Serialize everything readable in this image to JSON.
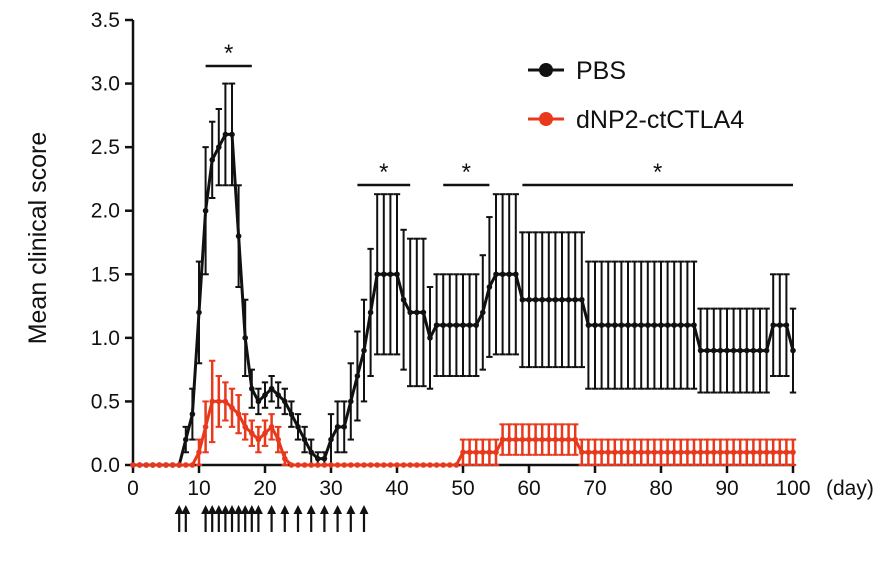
{
  "chart_data": {
    "type": "line",
    "ylabel": "Mean clinical score",
    "xunit": "(day)",
    "xlim": [
      0,
      100
    ],
    "ylim": [
      0,
      3.5
    ],
    "x_ticks": [
      0,
      10,
      20,
      30,
      40,
      50,
      60,
      70,
      80,
      90,
      100
    ],
    "y_ticks": [
      "0.0",
      "0.5",
      "1.0",
      "1.5",
      "2.0",
      "2.5",
      "3.0",
      "3.5"
    ],
    "legend_position": "top-right",
    "colors": {
      "pbs": "#111111",
      "dnp2": "#e8391d"
    },
    "series": [
      {
        "name": "PBS",
        "color": "#111111",
        "x": [
          0,
          1,
          2,
          3,
          4,
          5,
          6,
          7,
          8,
          9,
          10,
          11,
          12,
          13,
          14,
          15,
          16,
          17,
          18,
          19,
          20,
          21,
          22,
          23,
          24,
          25,
          26,
          27,
          28,
          29,
          30,
          31,
          32,
          33,
          34,
          35,
          36,
          37,
          38,
          39,
          40,
          41,
          42,
          43,
          44,
          45,
          46,
          47,
          48,
          49,
          50,
          51,
          52,
          53,
          54,
          55,
          56,
          57,
          58,
          59,
          60,
          61,
          62,
          63,
          64,
          65,
          66,
          67,
          68,
          69,
          70,
          71,
          72,
          73,
          74,
          75,
          76,
          77,
          78,
          79,
          80,
          81,
          82,
          83,
          84,
          85,
          86,
          87,
          88,
          89,
          90,
          91,
          92,
          93,
          94,
          95,
          96,
          97,
          98,
          99,
          100
        ],
        "y": [
          0,
          0,
          0,
          0,
          0,
          0,
          0,
          0,
          0.2,
          0.4,
          1.2,
          2.0,
          2.4,
          2.5,
          2.6,
          2.6,
          1.8,
          1.0,
          0.6,
          0.5,
          0.55,
          0.6,
          0.55,
          0.5,
          0.4,
          0.3,
          0.2,
          0.1,
          0.05,
          0.05,
          0.2,
          0.3,
          0.3,
          0.5,
          0.7,
          0.9,
          1.2,
          1.5,
          1.5,
          1.5,
          1.5,
          1.3,
          1.2,
          1.2,
          1.2,
          1.0,
          1.1,
          1.1,
          1.1,
          1.1,
          1.1,
          1.1,
          1.1,
          1.2,
          1.4,
          1.5,
          1.5,
          1.5,
          1.5,
          1.3,
          1.3,
          1.3,
          1.3,
          1.3,
          1.3,
          1.3,
          1.3,
          1.3,
          1.3,
          1.1,
          1.1,
          1.1,
          1.1,
          1.1,
          1.1,
          1.1,
          1.1,
          1.1,
          1.1,
          1.1,
          1.1,
          1.1,
          1.1,
          1.1,
          1.1,
          1.1,
          0.9,
          0.9,
          0.9,
          0.9,
          0.9,
          0.9,
          0.9,
          0.9,
          0.9,
          0.9,
          0.9,
          1.1,
          1.1,
          1.1,
          0.9
        ],
        "err": [
          0,
          0,
          0,
          0,
          0,
          0,
          0,
          0,
          0.1,
          0.2,
          0.4,
          0.5,
          0.3,
          0.3,
          0.4,
          0.4,
          0.4,
          0.3,
          0.15,
          0.1,
          0.1,
          0.1,
          0.1,
          0.1,
          0.1,
          0.1,
          0.1,
          0.1,
          0.05,
          0.05,
          0.2,
          0.2,
          0.2,
          0.3,
          0.35,
          0.4,
          0.5,
          0.63,
          0.63,
          0.63,
          0.63,
          0.55,
          0.58,
          0.58,
          0.58,
          0.4,
          0.4,
          0.4,
          0.4,
          0.4,
          0.4,
          0.4,
          0.4,
          0.45,
          0.55,
          0.63,
          0.63,
          0.63,
          0.63,
          0.53,
          0.53,
          0.53,
          0.53,
          0.53,
          0.53,
          0.53,
          0.53,
          0.53,
          0.53,
          0.5,
          0.5,
          0.5,
          0.5,
          0.5,
          0.5,
          0.5,
          0.5,
          0.5,
          0.5,
          0.5,
          0.5,
          0.5,
          0.5,
          0.5,
          0.5,
          0.5,
          0.33,
          0.33,
          0.33,
          0.33,
          0.33,
          0.33,
          0.33,
          0.33,
          0.33,
          0.33,
          0.33,
          0.4,
          0.4,
          0.4,
          0.33
        ]
      },
      {
        "name": "dNP2-ctCTLA4",
        "color": "#e8391d",
        "x": [
          0,
          1,
          2,
          3,
          4,
          5,
          6,
          7,
          8,
          9,
          10,
          11,
          12,
          13,
          14,
          15,
          16,
          17,
          18,
          19,
          20,
          21,
          22,
          23,
          24,
          25,
          26,
          27,
          28,
          29,
          30,
          31,
          32,
          33,
          34,
          35,
          36,
          37,
          38,
          39,
          40,
          41,
          42,
          43,
          44,
          45,
          46,
          47,
          48,
          49,
          50,
          51,
          52,
          53,
          54,
          55,
          56,
          57,
          58,
          59,
          60,
          61,
          62,
          63,
          64,
          65,
          66,
          67,
          68,
          69,
          70,
          71,
          72,
          73,
          74,
          75,
          76,
          77,
          78,
          79,
          80,
          81,
          82,
          83,
          84,
          85,
          86,
          87,
          88,
          89,
          90,
          91,
          92,
          93,
          94,
          95,
          96,
          97,
          98,
          99,
          100
        ],
        "y": [
          0,
          0,
          0,
          0,
          0,
          0,
          0,
          0,
          0,
          0,
          0.1,
          0.3,
          0.5,
          0.5,
          0.5,
          0.45,
          0.4,
          0.3,
          0.25,
          0.2,
          0.25,
          0.3,
          0.2,
          0.05,
          0,
          0,
          0,
          0,
          0,
          0,
          0,
          0,
          0,
          0,
          0,
          0,
          0,
          0,
          0,
          0,
          0,
          0,
          0,
          0,
          0,
          0,
          0,
          0,
          0,
          0,
          0.1,
          0.1,
          0.1,
          0.1,
          0.1,
          0.1,
          0.2,
          0.2,
          0.2,
          0.2,
          0.2,
          0.2,
          0.2,
          0.2,
          0.2,
          0.2,
          0.2,
          0.2,
          0.1,
          0.1,
          0.1,
          0.1,
          0.1,
          0.1,
          0.1,
          0.1,
          0.1,
          0.1,
          0.1,
          0.1,
          0.1,
          0.1,
          0.1,
          0.1,
          0.1,
          0.1,
          0.1,
          0.1,
          0.1,
          0.1,
          0.1,
          0.1,
          0.1,
          0.1,
          0.1,
          0.1,
          0.1,
          0.1,
          0.1,
          0.1,
          0.1
        ],
        "err": [
          0,
          0,
          0,
          0,
          0,
          0,
          0,
          0,
          0,
          0,
          0.1,
          0.2,
          0.32,
          0.2,
          0.15,
          0.15,
          0.15,
          0.1,
          0.1,
          0.1,
          0.1,
          0.1,
          0.1,
          0.05,
          0,
          0,
          0,
          0,
          0,
          0,
          0,
          0,
          0,
          0,
          0,
          0,
          0,
          0,
          0,
          0,
          0,
          0,
          0,
          0,
          0,
          0,
          0,
          0,
          0,
          0,
          0.1,
          0.1,
          0.1,
          0.1,
          0.1,
          0.1,
          0.12,
          0.12,
          0.12,
          0.12,
          0.12,
          0.12,
          0.12,
          0.12,
          0.12,
          0.12,
          0.12,
          0.12,
          0.1,
          0.1,
          0.1,
          0.1,
          0.1,
          0.1,
          0.1,
          0.1,
          0.1,
          0.1,
          0.1,
          0.1,
          0.1,
          0.1,
          0.1,
          0.1,
          0.1,
          0.1,
          0.1,
          0.1,
          0.1,
          0.1,
          0.1,
          0.1,
          0.1,
          0.1,
          0.1,
          0.1,
          0.1,
          0.1,
          0.1,
          0.1,
          0.1
        ]
      }
    ],
    "significance": [
      {
        "from": 11,
        "to": 18,
        "label": "*"
      },
      {
        "from": 34,
        "to": 42,
        "label": "*"
      },
      {
        "from": 47,
        "to": 54,
        "label": "*"
      },
      {
        "from": 59,
        "to": 100,
        "label": "*"
      }
    ],
    "injection_days": [
      7,
      8,
      11,
      12,
      13,
      14,
      15,
      16,
      17,
      18,
      19,
      21,
      23,
      25,
      27,
      29,
      31,
      33,
      35
    ]
  }
}
